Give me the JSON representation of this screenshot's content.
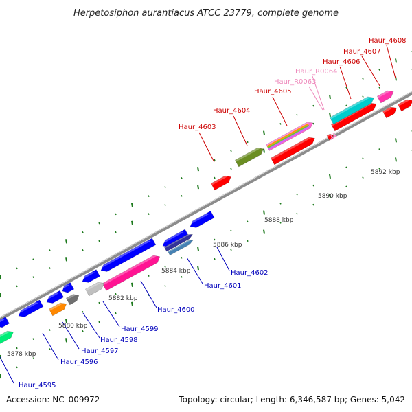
{
  "title": "Herpetosiphon aurantiacus ATCC 23779, complete genome",
  "footer": {
    "accession": "Accession: NC_009972",
    "topology": "Topology: circular; Length: 6,346,587 bp; Genes: 5,042"
  },
  "colors": {
    "backbone": "#8c8c8c",
    "tick": "#1e7a1e",
    "forward_label": "#cc0000",
    "reverse_label": "#0000bb",
    "rna_label": "#ee88bb"
  },
  "scale_labels": [
    "5878 kbp",
    "5880 kbp",
    "5882 kbp",
    "5884 kbp",
    "5886 kbp",
    "5888 kbp",
    "5890 kbp",
    "5892 kbp"
  ],
  "gene_labels": {
    "forward": [
      "Haur_4603",
      "Haur_4604",
      "Haur_4605",
      "Haur_4606",
      "Haur_4607",
      "Haur_4608"
    ],
    "rna": [
      "Haur_R0063",
      "Haur_R0064"
    ],
    "reverse": [
      "Haur_4595",
      "Haur_4596",
      "Haur_4597",
      "Haur_4598",
      "Haur_4599",
      "Haur_4600",
      "Haur_4601",
      "Haur_4602"
    ]
  },
  "features": [
    {
      "name": "feature-red-1",
      "color": "#ff0000"
    },
    {
      "name": "feature-olive",
      "color": "#6b8e23"
    },
    {
      "name": "feature-red-2",
      "color": "#ff0000"
    },
    {
      "name": "feature-multicolor",
      "color": "#ff66cc"
    },
    {
      "name": "feature-red-3",
      "color": "#ff0000"
    },
    {
      "name": "feature-cyan",
      "color": "#00cccc"
    },
    {
      "name": "feature-red-4",
      "color": "#ff0000"
    },
    {
      "name": "feature-magenta",
      "color": "#ff33aa"
    },
    {
      "name": "feature-red-5",
      "color": "#ff0000"
    },
    {
      "name": "feature-red-6",
      "color": "#ff0000"
    },
    {
      "name": "feature-blue-1",
      "color": "#0000ff"
    },
    {
      "name": "feature-blue-2",
      "color": "#0000ff"
    },
    {
      "name": "feature-navy",
      "color": "#333399"
    },
    {
      "name": "feature-steel",
      "color": "#4682b4"
    },
    {
      "name": "feature-pink",
      "color": "#ff1493"
    },
    {
      "name": "feature-blue-3",
      "color": "#0000ff"
    },
    {
      "name": "feature-blue-4",
      "color": "#0000ff"
    },
    {
      "name": "feature-silver",
      "color": "#c0c0c0"
    },
    {
      "name": "feature-blue-5",
      "color": "#0000ff"
    },
    {
      "name": "feature-blue-6",
      "color": "#0000ff"
    },
    {
      "name": "feature-gray",
      "color": "#707070"
    },
    {
      "name": "feature-orange",
      "color": "#ff8800"
    },
    {
      "name": "feature-blue-7",
      "color": "#0000ff"
    },
    {
      "name": "feature-blue-8",
      "color": "#0000ff"
    },
    {
      "name": "feature-green",
      "color": "#00ee77"
    }
  ]
}
